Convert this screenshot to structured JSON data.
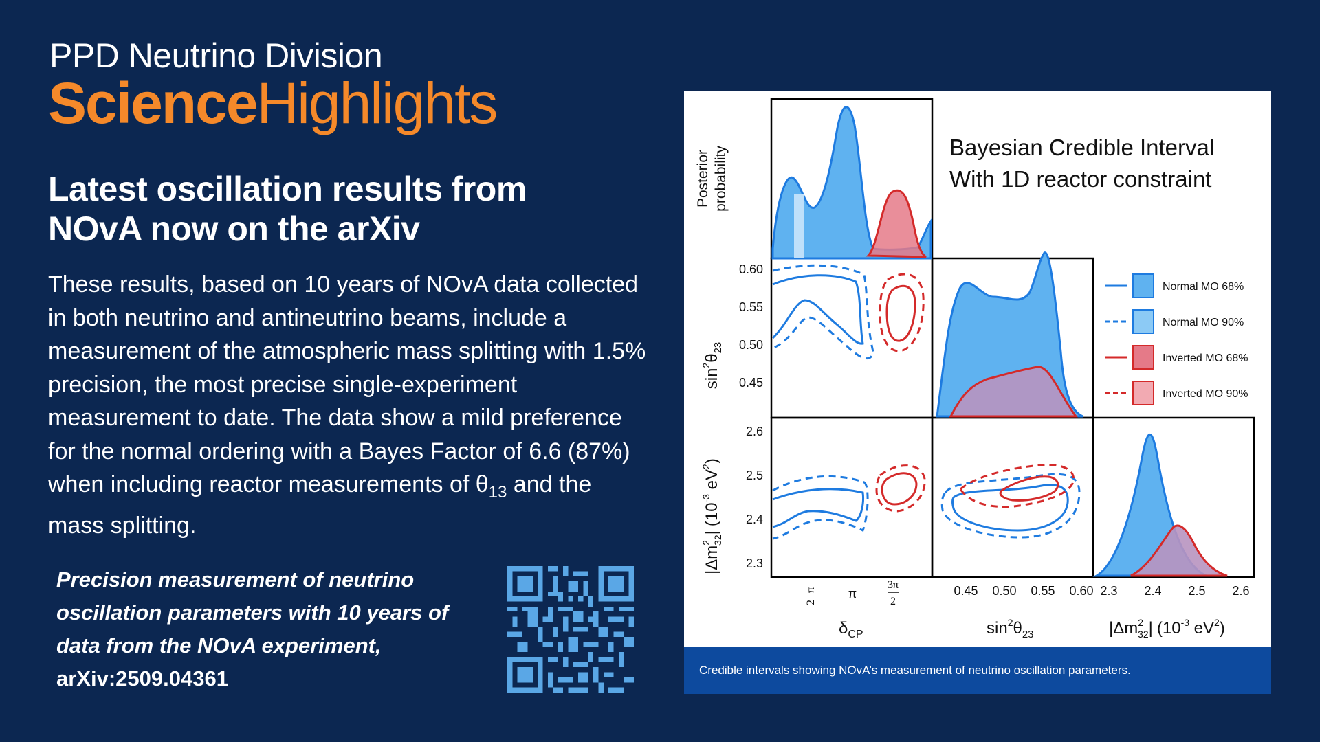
{
  "header": {
    "division": "PPD Neutrino Division",
    "highlights_bold": "Science",
    "highlights_light": "Highlights"
  },
  "headline": "Latest oscillation results from NOvA now on the arXiv",
  "body_text": {
    "before_sub": "These results, based on 10 years of NOvA data collected in both neutrino and antineutrino beams, include a measurement of the atmospheric mass splitting with 1.5% precision, the most precise single-experiment measurement to date. The data show a mild preference for the normal ordering with a Bayes Factor of 6.6 (87%) when including reactor measurements of θ",
    "sub": "13",
    "after_sub": " and the mass splitting."
  },
  "citation": {
    "title": "Precision measurement of neutrino oscillation parameters with 10 years of data from the NOvA experiment,",
    "id": "arXiv:2509.04361"
  },
  "qr": {
    "icon": "qr-code-icon",
    "color": "#5aa7e6"
  },
  "colors": {
    "background": "#0c2751",
    "accent": "#f5892a",
    "caption_bar": "#0d4a9e",
    "normal": "#1e7be0",
    "inverted": "#d42a2a"
  },
  "figure": {
    "title_line1": "Bayesian Credible Interval",
    "title_line2": "With 1D reactor constraint",
    "caption": "Credible intervals showing NOvA’s measurement of neutrino oscillation parameters.",
    "legend": [
      "Normal MO 68%",
      "Normal MO 90%",
      "Inverted MO 68%",
      "Inverted MO 90%"
    ],
    "ylabel_top": [
      "Posterior",
      "probability"
    ],
    "axis_labels": {
      "deltacp": "δ",
      "deltacp_sub": "CP",
      "sin_main": "sin",
      "sin_sup": "2",
      "sin_theta": "θ",
      "sin_sub": "23",
      "dm_bar": "|",
      "dm_main": "Δm",
      "dm_sup": "2",
      "dm_sub": "32",
      "dm_bar2": "|",
      "dm_units_open": "(10",
      "dm_units_exp": "-3",
      "dm_units_ev": " eV",
      "dm_units_ev_sup": "2",
      "dm_units_close": ")"
    },
    "ticks": {
      "sin_y": [
        "0.60",
        "0.55",
        "0.50",
        "0.45"
      ],
      "dm_y": [
        "2.6",
        "2.5",
        "2.4",
        "2.3"
      ],
      "sin_x": [
        "0.45",
        "0.50",
        "0.55",
        "0.60"
      ],
      "dm_x": [
        "2.3",
        "2.4",
        "2.5",
        "2.6"
      ],
      "dcp_pi": "π",
      "dcp_pi2_num": "π",
      "dcp_pi2_den": "2",
      "dcp_3pi2_num": "3π",
      "dcp_3pi2_den": "2"
    }
  }
}
